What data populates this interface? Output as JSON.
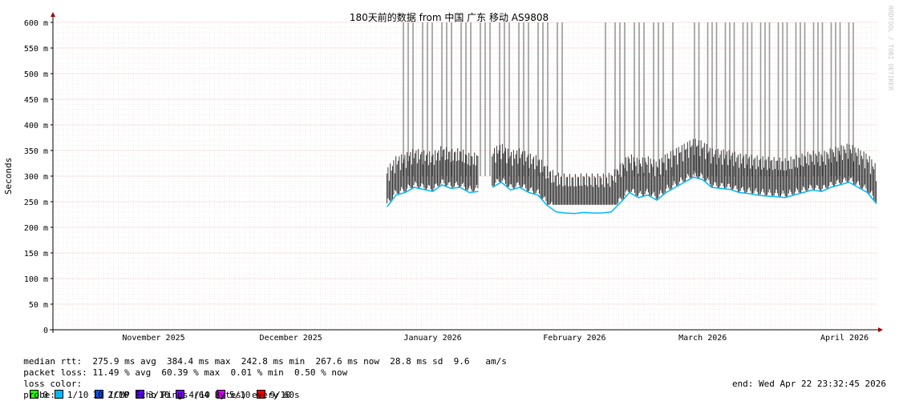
{
  "chart_data": {
    "type": "line",
    "title": "180天前的数据 from 中国 广东 移动 AS9808",
    "ylabel": "Seconds",
    "ylim": [
      0,
      600
    ],
    "y_ticks": [
      {
        "v": 0,
        "label": "0"
      },
      {
        "v": 50,
        "label": "50 m"
      },
      {
        "v": 100,
        "label": "100 m"
      },
      {
        "v": 150,
        "label": "150 m"
      },
      {
        "v": 200,
        "label": "200 m"
      },
      {
        "v": 250,
        "label": "250 m"
      },
      {
        "v": 300,
        "label": "300 m"
      },
      {
        "v": 350,
        "label": "350 m"
      },
      {
        "v": 400,
        "label": "400 m"
      },
      {
        "v": 450,
        "label": "450 m"
      },
      {
        "v": 500,
        "label": "500 m"
      },
      {
        "v": 550,
        "label": "550 m"
      },
      {
        "v": 600,
        "label": "600 m"
      }
    ],
    "xlim": [
      "2025-10-24",
      "2026-04-22"
    ],
    "x_ticks": [
      {
        "date": "2025-11-15",
        "label": "November 2025"
      },
      {
        "date": "2025-12-15",
        "label": "December 2025"
      },
      {
        "date": "2026-01-15",
        "label": "January 2026"
      },
      {
        "date": "2026-02-15",
        "label": "February 2026"
      },
      {
        "date": "2026-03-15",
        "label": "March 2026"
      },
      {
        "date": "2026-04-15",
        "label": "April 2026"
      }
    ],
    "grid": true,
    "watermark": "RRDTOOL / TOBI OETIKER",
    "series": [
      {
        "name": "median rtt",
        "points": [
          [
            "2026-01-05",
            262
          ],
          [
            "2026-01-07",
            285
          ],
          [
            "2026-01-09",
            290
          ],
          [
            "2026-01-11",
            300
          ],
          [
            "2026-01-13",
            296
          ],
          [
            "2026-01-15",
            292
          ],
          [
            "2026-01-17",
            305
          ],
          [
            "2026-01-19",
            298
          ],
          [
            "2026-01-21",
            300
          ],
          [
            "2026-01-23",
            290
          ],
          [
            "2026-01-25",
            292
          ],
          [
            "2026-01-28",
            300
          ],
          [
            "2026-01-30",
            310
          ],
          [
            "2026-02-01",
            295
          ],
          [
            "2026-02-03",
            300
          ],
          [
            "2026-02-05",
            290
          ],
          [
            "2026-02-07",
            285
          ],
          [
            "2026-02-09",
            265
          ],
          [
            "2026-02-11",
            252
          ],
          [
            "2026-02-13",
            250
          ],
          [
            "2026-02-15",
            249
          ],
          [
            "2026-02-17",
            251
          ],
          [
            "2026-02-19",
            250
          ],
          [
            "2026-02-21",
            250
          ],
          [
            "2026-02-23",
            252
          ],
          [
            "2026-02-25",
            270
          ],
          [
            "2026-02-27",
            290
          ],
          [
            "2026-03-01",
            280
          ],
          [
            "2026-03-03",
            285
          ],
          [
            "2026-03-05",
            275
          ],
          [
            "2026-03-07",
            290
          ],
          [
            "2026-03-09",
            300
          ],
          [
            "2026-03-11",
            310
          ],
          [
            "2026-03-13",
            320
          ],
          [
            "2026-03-15",
            315
          ],
          [
            "2026-03-17",
            300
          ],
          [
            "2026-03-19",
            298
          ],
          [
            "2026-03-21",
            296
          ],
          [
            "2026-03-23",
            290
          ],
          [
            "2026-03-25",
            288
          ],
          [
            "2026-03-27",
            285
          ],
          [
            "2026-03-29",
            283
          ],
          [
            "2026-03-31",
            282
          ],
          [
            "2026-04-02",
            280
          ],
          [
            "2026-04-04",
            285
          ],
          [
            "2026-04-06",
            290
          ],
          [
            "2026-04-08",
            295
          ],
          [
            "2026-04-10",
            292
          ],
          [
            "2026-04-12",
            300
          ],
          [
            "2026-04-14",
            305
          ],
          [
            "2026-04-16",
            310
          ],
          [
            "2026-04-18",
            300
          ],
          [
            "2026-04-20",
            290
          ],
          [
            "2026-04-22",
            268
          ]
        ]
      }
    ]
  },
  "legend": {
    "median_rtt": "median rtt:  275.9 ms avg  384.4 ms max  242.8 ms min  267.6 ms now  28.8 ms sd  9.6   am/s",
    "packet_loss": "packet loss: 11.49 % avg  60.39 % max  0.01 % min  0.50 % now",
    "loss_color_label": "loss color:",
    "loss_colors": [
      {
        "label": "0",
        "color": "#26ff00"
      },
      {
        "label": "1/10",
        "color": "#00b8ff"
      },
      {
        "label": "2/10",
        "color": "#0059ff"
      },
      {
        "label": "3/10",
        "color": "#5e00ff"
      },
      {
        "label": "4/10",
        "color": "#7e00ff"
      },
      {
        "label": "5/10",
        "color": "#dd00ff"
      },
      {
        "label": "9/10",
        "color": "#ff0000"
      }
    ],
    "probe": "probe:       10 ICMP Echo Pings (64 Bytes) every 60s",
    "end": "end: Wed Apr 22 23:32:45 2026"
  }
}
